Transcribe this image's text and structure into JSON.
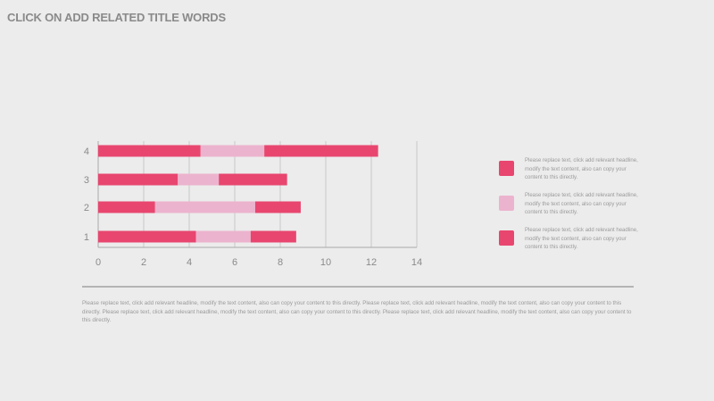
{
  "slide": {
    "title": "CLICK ON ADD RELATED TITLE WORDS",
    "body_text": "Please replace text, click add relevant headline, modify the text content, also can copy your content to this directly. Please replace text, click add relevant headline, modify the text content, also can copy your content to this directly. Please replace text, click add relevant headline, modify the text content, also can copy your content to this directly. Please replace text, click add relevant headline, modify the text content, also can copy your content to this directly."
  },
  "colors": {
    "series_dark": "#e8466f",
    "series_light": "#ecb3ce",
    "axis_text": "#8a8a8a",
    "gridline": "#c8c8c8"
  },
  "legend": [
    {
      "text": "Please replace text, click add relevant headline, modify the text content, also can copy your content to this directly.",
      "color": "#e8466f"
    },
    {
      "text": "Please replace text, click add relevant headline, modify the text content, also can copy your content to this directly.",
      "color": "#ecb3ce"
    },
    {
      "text": "Please replace text, click add relevant headline, modify the text content, also can copy your content to this directly.",
      "color": "#e8466f"
    }
  ],
  "chart_data": {
    "type": "bar",
    "orientation": "horizontal",
    "stacked": true,
    "categories": [
      "1",
      "2",
      "3",
      "4"
    ],
    "series": [
      {
        "values": [
          4.3,
          2.5,
          3.5,
          4.5
        ],
        "color": "#e8466f"
      },
      {
        "values": [
          2.4,
          4.4,
          1.8,
          2.8
        ],
        "color": "#ecb3ce"
      },
      {
        "values": [
          2.0,
          2.0,
          3.0,
          5.0
        ],
        "color": "#e8466f"
      }
    ],
    "xticks": [
      "0",
      "2",
      "4",
      "6",
      "8",
      "10",
      "12",
      "14"
    ],
    "xlim": [
      0,
      14
    ],
    "grid": "vertical",
    "legend_position": "right"
  }
}
